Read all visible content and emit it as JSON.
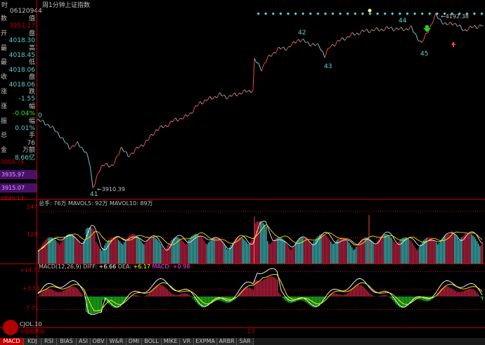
{
  "header": {
    "time_label": "时",
    "code": "06120944",
    "period": "周1分钟",
    "index_name": "上证指数"
  },
  "info": {
    "rows": [
      {
        "label": "数",
        "value": "值",
        "color": "#c0c0c0"
      },
      {
        "label": "",
        "value": "3951.27",
        "color": "#c00000"
      },
      {
        "label": "开",
        "value": "盘",
        "color": "#c0c0c0"
      },
      {
        "label": "",
        "value": "4018.30",
        "color": "#5ad0d0"
      },
      {
        "label": "最",
        "value": "高",
        "color": "#c0c0c0"
      },
      {
        "label": "",
        "value": "4018.45",
        "color": "#5ad0d0"
      },
      {
        "label": "最",
        "value": "低",
        "color": "#c0c0c0"
      },
      {
        "label": "",
        "value": "4018.06",
        "color": "#5ad0d0"
      },
      {
        "label": "收",
        "value": "盘",
        "color": "#c0c0c0"
      },
      {
        "label": "",
        "value": "4018.06",
        "color": "#5ad0d0"
      },
      {
        "label": "涨",
        "value": "跌",
        "color": "#c0c0c0"
      },
      {
        "label": "",
        "value": "-1.55",
        "color": "#5ad0d0"
      },
      {
        "label": "涨",
        "value": "幅",
        "color": "#c0c0c0"
      },
      {
        "label": "",
        "value": "-0.04%",
        "color": "#3cdc3c"
      },
      {
        "label": "振",
        "value": "幅",
        "color": "#c0c0c0"
      },
      {
        "label": "",
        "value": "0.01%",
        "color": "#5ad0d0"
      },
      {
        "label": "总",
        "value": "手",
        "color": "#c0c0c0"
      },
      {
        "label": "",
        "value": "76",
        "color": "#c0c0c0"
      },
      {
        "label": "金",
        "value": "万额",
        "color": "#c0c0c0"
      },
      {
        "label": "",
        "value": "8.66亿",
        "color": "#5ad0d0"
      }
    ],
    "price_ticks": [
      "3959.74",
      "3935.97",
      "3915.07",
      "3890.13"
    ]
  },
  "main_chart": {
    "annotations": [
      "42",
      "43",
      "44",
      "45",
      "41",
      "0"
    ],
    "high_label": "4192.38",
    "low_label": "3910.39"
  },
  "volume": {
    "title": "总手: 76万 MAVOL5: 92万 MAVOL10: 89万",
    "ticks": [
      "247",
      "124"
    ]
  },
  "macd": {
    "title_prefix": "MACD(12,26,9)  DIFF: ",
    "diff": "+6.66",
    "dea_prefix": " DEA: ",
    "dea": "+6.17",
    "macd_prefix": " MACD: ",
    "macd": "+0.98",
    "ticks": [
      "+14.77",
      "+3.53",
      "-7.71"
    ]
  },
  "bottom": {
    "date_mark": "13",
    "logo_text": "CJOL.10",
    "logo_sub": "中国股票网"
  },
  "tabs": [
    {
      "label": "MACD",
      "active": true
    },
    {
      "label": "KDJ",
      "active": false
    },
    {
      "label": "RSI",
      "active": false
    },
    {
      "label": "BIAS",
      "active": false
    },
    {
      "label": "ASI",
      "active": false
    },
    {
      "label": "OBV",
      "active": false
    },
    {
      "label": "W&R",
      "active": false
    },
    {
      "label": "DMI",
      "active": false
    },
    {
      "label": "BOLL",
      "active": false
    },
    {
      "label": "MIKE",
      "active": false
    },
    {
      "label": "VR",
      "active": false
    },
    {
      "label": "EXPMA",
      "active": false
    },
    {
      "label": "ARBR",
      "active": false
    },
    {
      "label": "SAR",
      "active": false
    }
  ],
  "colors": {
    "up": "#ff4040",
    "down": "#5ad0d0",
    "grid": "#c00000",
    "white": "#ffffff",
    "yellow": "#ffff00",
    "magenta": "#ff40ff",
    "green": "#20c020"
  }
}
